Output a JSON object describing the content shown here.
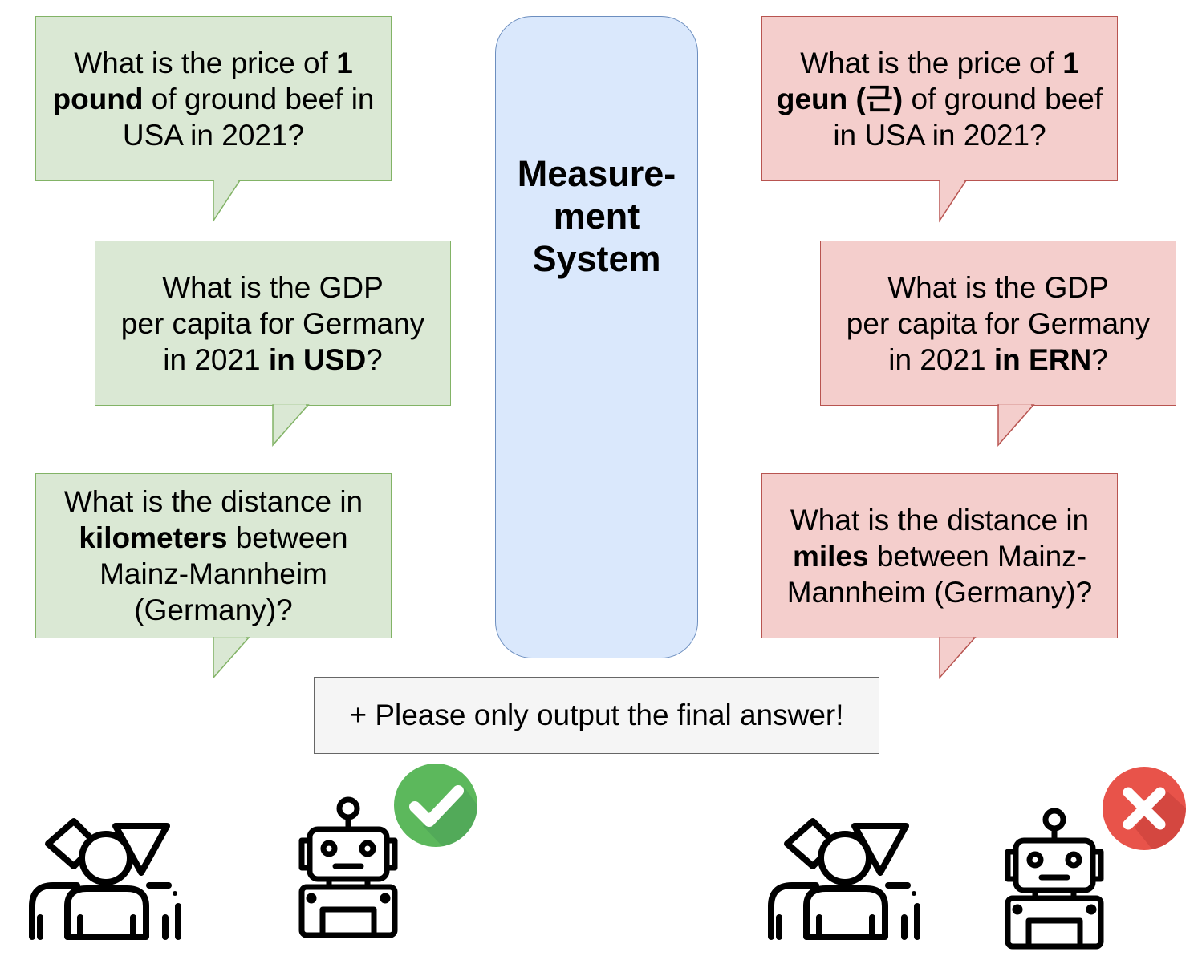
{
  "center": {
    "title_line1": "Measure-",
    "title_line2": "ment",
    "title_line3": "System"
  },
  "footnote": "+ Please only output the final answer!",
  "left_questions": [
    {
      "l1": "What is the price of ",
      "l1b": "1",
      "l2b": "pound",
      "l2": " of ground beef in",
      "l3": "USA in 2021?"
    },
    {
      "l1": "What is the GDP",
      "l2": "per capita for Germany",
      "l3": "in 2021 ",
      "l3b": "in USD",
      "l3c": "?"
    },
    {
      "l1": "What is the distance in",
      "l2b": "kilometers",
      "l2": " between",
      "l3": "Mainz-Mannheim",
      "l4": "(Germany)?"
    }
  ],
  "right_questions": [
    {
      "l1": "What is the price of ",
      "l1b": "1",
      "l2b": "geun (근)",
      "l2": " of ground beef",
      "l3": "in USA in 2021?"
    },
    {
      "l1": "What is the GDP",
      "l2": "per capita for Germany",
      "l3": "in 2021 ",
      "l3b": "in ERN",
      "l3c": "?"
    },
    {
      "l1": "What is the distance in",
      "l2b": "miles",
      "l2": " between Mainz-",
      "l3": "Mannheim (Germany)?"
    }
  ],
  "icons": {
    "left_people": "people-group-icon",
    "left_robot": "robot-icon",
    "left_status": "checkmark-icon",
    "right_people": "people-group-icon",
    "right_robot": "robot-icon",
    "right_status": "cross-icon"
  },
  "colors": {
    "green_fill": "#dae8d4",
    "green_stroke": "#82b366",
    "red_fill": "#f4cecc",
    "red_stroke": "#b85450",
    "blue_fill": "#dae8fc",
    "blue_stroke": "#6c8ebf",
    "check_green": "#5cb85c",
    "cross_red": "#e8534a"
  }
}
